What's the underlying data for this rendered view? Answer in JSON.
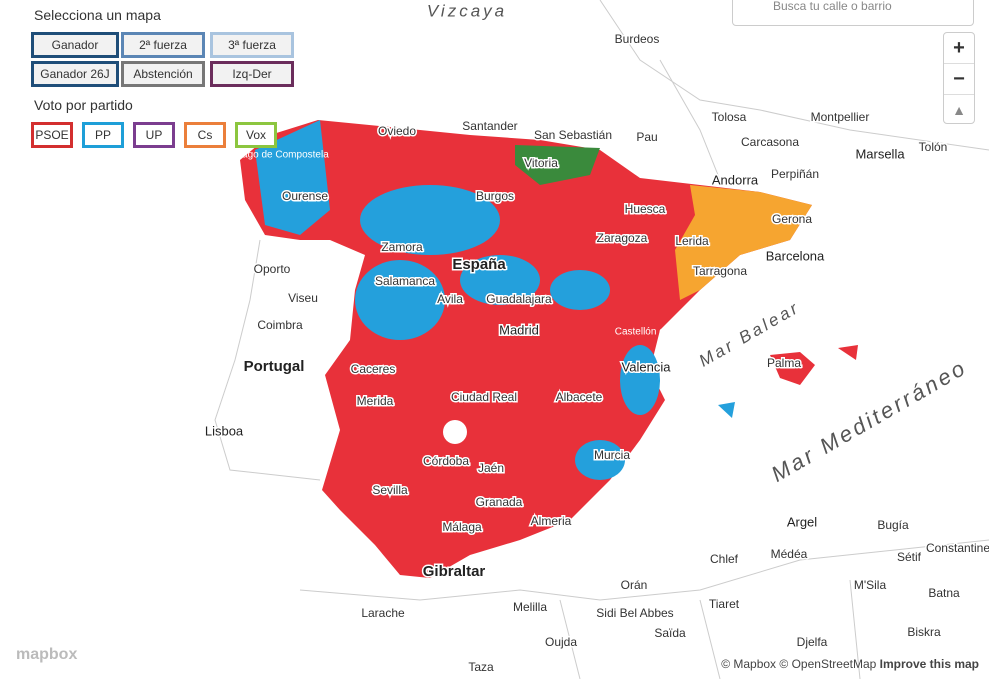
{
  "controls": {
    "map_title": "Selecciona un mapa",
    "map_buttons": [
      "Ganador",
      "2ª fuerza",
      "3ª fuerza",
      "Ganador 26J",
      "Abstención",
      "Izq-Der"
    ],
    "party_title": "Voto por partido",
    "party_buttons": [
      "PSOE",
      "PP",
      "UP",
      "Cs",
      "Vox"
    ]
  },
  "search": {
    "placeholder": "Busca tu calle o barrio"
  },
  "zoom": {
    "in": "+",
    "out": "−"
  },
  "map": {
    "labels": [
      "Vizcaya",
      "Burdeos",
      "Oviedo",
      "Santander",
      "San Sebastián",
      "Pau",
      "Tolosa",
      "Montpellier",
      "Carcasona",
      "Marsella",
      "Tolón",
      "Vitoria",
      "Perpiñán",
      "Andorra",
      "Santiago de Compostela",
      "Ourense",
      "Burgos",
      "Huesca",
      "Gerona",
      "Zaragoza",
      "Lerida",
      "Zamora",
      "España",
      "Tarragona",
      "Barcelona",
      "Oporto",
      "Salamanca",
      "Avila",
      "Guadalajara",
      "Viseu",
      "Madrid",
      "Castellón de la Plana",
      "Coimbra",
      "Mar Balear",
      "Portugal",
      "Caceres",
      "Valencia",
      "Palma",
      "Merida",
      "Ciudad Real",
      "Albacete",
      "Lisboa",
      "Mar Mediterráneo",
      "Murcia",
      "Córdoba",
      "Jaén",
      "Sevilla",
      "Granada",
      "Almeria",
      "Argel",
      "Bugía",
      "Constantine",
      "Málaga",
      "Gibraltar",
      "Chlef",
      "Médéa",
      "Sétif",
      "Orán",
      "M'Sila",
      "Batna",
      "Larache",
      "Melilla",
      "Sidi Bel Abbes",
      "Tiaret",
      "Biskra",
      "Oujda",
      "Saïda",
      "Djelfa",
      "Taza"
    ]
  },
  "attribution": {
    "logo": "mapbox",
    "mapbox": "© Mapbox",
    "osm": "© OpenStreetMap",
    "improve": "Improve this map"
  }
}
